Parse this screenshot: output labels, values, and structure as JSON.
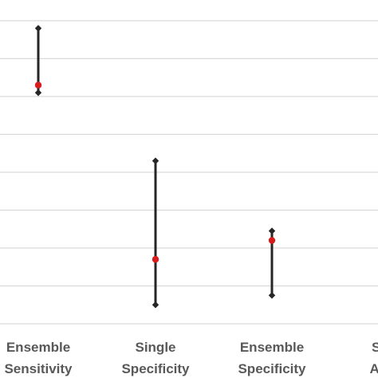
{
  "chart_data": {
    "type": "scatter",
    "title": "",
    "xlabel": "",
    "ylabel": "",
    "categories": [
      [
        "Ensemble",
        "Sensitivity"
      ],
      [
        "Single",
        "Specificity"
      ],
      [
        "Ensemble",
        "Specificity"
      ],
      [
        "Si",
        "Av"
      ]
    ],
    "ylim": [
      0,
      8.5
    ],
    "grid": true,
    "series": [
      {
        "points": [
          {
            "category_index": 0,
            "low": 6.1,
            "high": 7.8,
            "value": 6.3
          },
          {
            "category_index": 1,
            "low": 0.5,
            "high": 4.3,
            "value": 1.7
          },
          {
            "category_index": 2,
            "low": 0.75,
            "high": 2.45,
            "value": 2.2
          }
        ]
      }
    ],
    "colors": {
      "point": "#d81b1b",
      "whisker": "#262626",
      "grid": "#d9d9d9",
      "label": "#595959"
    }
  }
}
